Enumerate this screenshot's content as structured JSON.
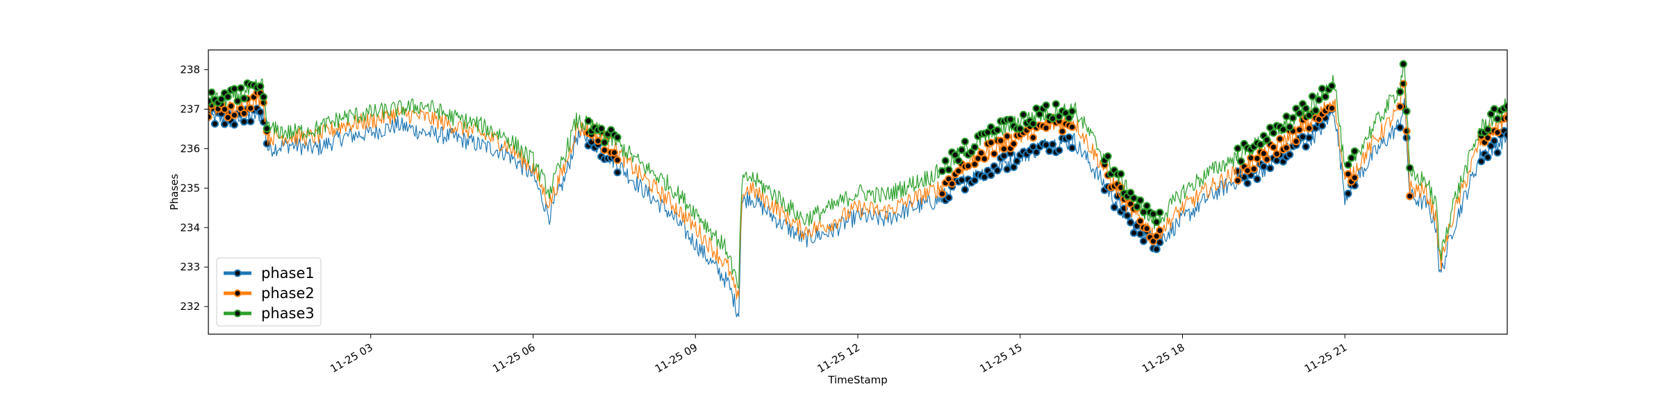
{
  "chart_data": {
    "type": "line",
    "title": "",
    "xlabel": "TimeStamp",
    "ylabel": "Phases",
    "x_range_hours": [
      0.0,
      24.0
    ],
    "xlim": [
      "2023-11-25 00:00",
      "2023-11-26 00:00"
    ],
    "ylim": [
      231.3,
      238.5
    ],
    "x_ticks": [
      "11-25 03",
      "11-25 06",
      "11-25 09",
      "11-25 12",
      "11-25 15",
      "11-25 18",
      "11-25 21"
    ],
    "x_tick_hours": [
      3,
      6,
      9,
      12,
      15,
      18,
      21
    ],
    "y_ticks": [
      232,
      233,
      234,
      235,
      236,
      237,
      238
    ],
    "grid": false,
    "legend_position": "lower-left",
    "marker_style": "black dots over highlighted (anomalous) intervals",
    "series": [
      {
        "name": "phase1",
        "color": "#1f77b4",
        "points": [
          [
            0,
            236.8
          ],
          [
            0.5,
            236.7
          ],
          [
            1,
            236.9
          ],
          [
            1.1,
            236.0
          ],
          [
            1.5,
            236.1
          ],
          [
            2,
            236.0
          ],
          [
            2.5,
            236.3
          ],
          [
            3,
            236.4
          ],
          [
            3.5,
            236.6
          ],
          [
            4,
            236.4
          ],
          [
            4.5,
            236.3
          ],
          [
            5,
            236.1
          ],
          [
            5.5,
            235.9
          ],
          [
            6,
            235.3
          ],
          [
            6.3,
            234.3
          ],
          [
            6.6,
            235.3
          ],
          [
            6.8,
            236.3
          ],
          [
            7,
            236.3
          ],
          [
            7.5,
            235.7
          ],
          [
            8,
            235.0
          ],
          [
            8.5,
            234.4
          ],
          [
            9,
            233.6
          ],
          [
            9.3,
            233.1
          ],
          [
            9.6,
            232.6
          ],
          [
            9.8,
            231.8
          ],
          [
            9.85,
            234.6
          ],
          [
            10,
            234.8
          ],
          [
            10.5,
            234.2
          ],
          [
            11,
            233.7
          ],
          [
            11.5,
            233.9
          ],
          [
            12,
            234.3
          ],
          [
            12.5,
            234.2
          ],
          [
            13,
            234.5
          ],
          [
            13.5,
            234.7
          ],
          [
            14,
            235.2
          ],
          [
            14.5,
            235.5
          ],
          [
            15,
            235.8
          ],
          [
            15.5,
            236.1
          ],
          [
            16,
            236.2
          ],
          [
            16.5,
            235.2
          ],
          [
            17,
            234.2
          ],
          [
            17.5,
            233.6
          ],
          [
            18,
            234.2
          ],
          [
            18.5,
            234.8
          ],
          [
            19,
            235.2
          ],
          [
            19.5,
            235.5
          ],
          [
            20,
            236.0
          ],
          [
            20.5,
            236.4
          ],
          [
            20.8,
            237.0
          ],
          [
            21,
            234.8
          ],
          [
            21.5,
            235.8
          ],
          [
            22,
            236.6
          ],
          [
            22.1,
            237.2
          ],
          [
            22.2,
            234.8
          ],
          [
            22.5,
            234.6
          ],
          [
            22.7,
            234.0
          ],
          [
            22.75,
            232.7
          ],
          [
            23,
            234.0
          ],
          [
            23.5,
            235.8
          ],
          [
            24,
            236.3
          ]
        ]
      },
      {
        "name": "phase2",
        "color": "#ff7f0e",
        "points": [
          [
            0,
            237.0
          ],
          [
            0.5,
            237.0
          ],
          [
            1,
            237.3
          ],
          [
            1.1,
            236.3
          ],
          [
            1.5,
            236.3
          ],
          [
            2,
            236.3
          ],
          [
            2.5,
            236.6
          ],
          [
            3,
            236.7
          ],
          [
            3.5,
            236.9
          ],
          [
            4,
            236.8
          ],
          [
            4.5,
            236.6
          ],
          [
            5,
            236.4
          ],
          [
            5.5,
            236.1
          ],
          [
            6,
            235.5
          ],
          [
            6.3,
            234.6
          ],
          [
            6.6,
            235.6
          ],
          [
            6.8,
            236.5
          ],
          [
            7,
            236.5
          ],
          [
            7.5,
            236.0
          ],
          [
            8,
            235.3
          ],
          [
            8.5,
            234.7
          ],
          [
            9,
            234.0
          ],
          [
            9.3,
            233.5
          ],
          [
            9.6,
            233.0
          ],
          [
            9.8,
            232.1
          ],
          [
            9.85,
            234.8
          ],
          [
            10,
            235.0
          ],
          [
            10.5,
            234.5
          ],
          [
            11,
            233.9
          ],
          [
            11.5,
            234.1
          ],
          [
            12,
            234.5
          ],
          [
            12.5,
            234.4
          ],
          [
            13,
            234.7
          ],
          [
            13.5,
            235.0
          ],
          [
            14,
            235.6
          ],
          [
            14.5,
            236.0
          ],
          [
            15,
            236.3
          ],
          [
            15.5,
            236.6
          ],
          [
            16,
            236.7
          ],
          [
            16.5,
            235.6
          ],
          [
            17,
            234.5
          ],
          [
            17.5,
            233.8
          ],
          [
            18,
            234.5
          ],
          [
            18.5,
            235.0
          ],
          [
            19,
            235.4
          ],
          [
            19.5,
            235.8
          ],
          [
            20,
            236.3
          ],
          [
            20.5,
            236.8
          ],
          [
            20.8,
            237.3
          ],
          [
            21,
            235.1
          ],
          [
            21.5,
            236.1
          ],
          [
            22,
            237.0
          ],
          [
            22.1,
            237.6
          ],
          [
            22.2,
            235.0
          ],
          [
            22.5,
            234.9
          ],
          [
            22.7,
            234.2
          ],
          [
            22.75,
            233.0
          ],
          [
            23,
            234.3
          ],
          [
            23.5,
            236.2
          ],
          [
            24,
            236.8
          ]
        ]
      },
      {
        "name": "phase3",
        "color": "#2ca02c",
        "points": [
          [
            0,
            237.2
          ],
          [
            0.5,
            237.3
          ],
          [
            1,
            237.6
          ],
          [
            1.1,
            236.5
          ],
          [
            1.5,
            236.4
          ],
          [
            2,
            236.5
          ],
          [
            2.5,
            236.8
          ],
          [
            3,
            236.9
          ],
          [
            3.5,
            237.0
          ],
          [
            4,
            237.1
          ],
          [
            4.5,
            236.8
          ],
          [
            5,
            236.6
          ],
          [
            5.5,
            236.3
          ],
          [
            6,
            235.7
          ],
          [
            6.3,
            234.9
          ],
          [
            6.6,
            235.9
          ],
          [
            6.8,
            236.7
          ],
          [
            7,
            236.6
          ],
          [
            7.5,
            236.2
          ],
          [
            8,
            235.6
          ],
          [
            8.5,
            235.1
          ],
          [
            9,
            234.4
          ],
          [
            9.3,
            233.9
          ],
          [
            9.6,
            233.4
          ],
          [
            9.8,
            232.4
          ],
          [
            9.85,
            235.1
          ],
          [
            10,
            235.3
          ],
          [
            10.5,
            234.8
          ],
          [
            11,
            234.2
          ],
          [
            11.5,
            234.5
          ],
          [
            12,
            234.9
          ],
          [
            12.5,
            234.8
          ],
          [
            13,
            235.1
          ],
          [
            13.5,
            235.4
          ],
          [
            14,
            236.0
          ],
          [
            14.5,
            236.4
          ],
          [
            15,
            236.7
          ],
          [
            15.5,
            236.9
          ],
          [
            16,
            237.0
          ],
          [
            16.5,
            235.9
          ],
          [
            17,
            234.9
          ],
          [
            17.5,
            234.1
          ],
          [
            18,
            234.9
          ],
          [
            18.5,
            235.4
          ],
          [
            19,
            235.8
          ],
          [
            19.5,
            236.2
          ],
          [
            20,
            236.7
          ],
          [
            20.5,
            237.2
          ],
          [
            20.8,
            237.8
          ],
          [
            21,
            235.4
          ],
          [
            21.5,
            236.5
          ],
          [
            22,
            237.5
          ],
          [
            22.1,
            238.2
          ],
          [
            22.2,
            235.3
          ],
          [
            22.5,
            235.2
          ],
          [
            22.7,
            234.5
          ],
          [
            22.75,
            233.2
          ],
          [
            23,
            234.6
          ],
          [
            23.5,
            236.5
          ],
          [
            24,
            237.1
          ]
        ]
      }
    ],
    "marker_intervals_hours": [
      [
        0,
        1.1
      ],
      [
        7,
        7.6
      ],
      [
        13.5,
        16.0
      ],
      [
        16.5,
        17.6
      ],
      [
        19.0,
        20.8
      ],
      [
        21.0,
        21.2
      ],
      [
        22.0,
        22.2
      ],
      [
        23.5,
        24.0
      ]
    ]
  }
}
